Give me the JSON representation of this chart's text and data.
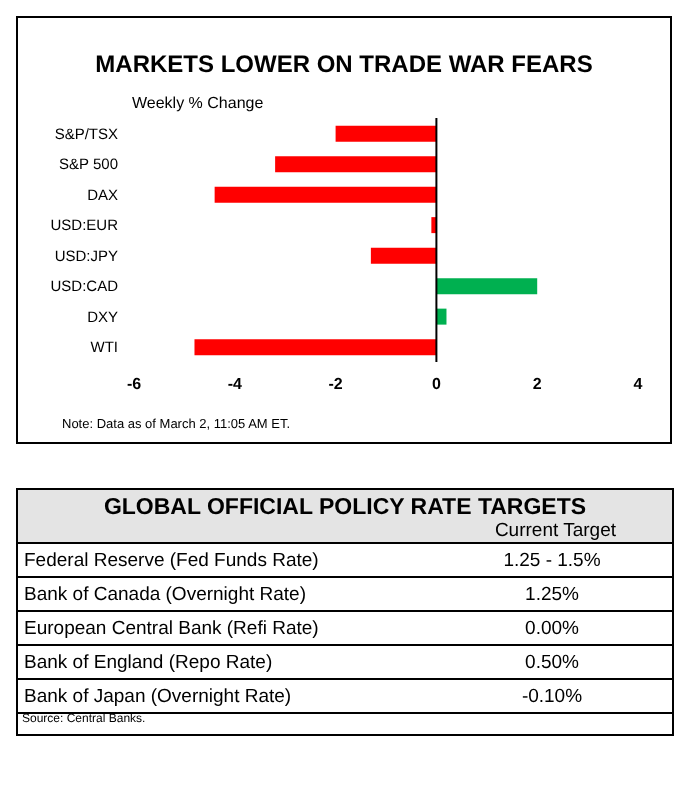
{
  "chart_data": [
    {
      "type": "bar",
      "orientation": "horizontal",
      "title": "MARKETS LOWER ON TRADE WAR FEARS",
      "subtitle": "Weekly % Change",
      "categories": [
        "S&P/TSX",
        "S&P 500",
        "DAX",
        "USD:EUR",
        "USD:JPY",
        "USD:CAD",
        "DXY",
        "WTI"
      ],
      "values": [
        -2.0,
        -3.2,
        -4.4,
        -0.1,
        -1.3,
        2.0,
        0.2,
        -4.8
      ],
      "colors": [
        "#ff0000",
        "#ff0000",
        "#ff0000",
        "#ff0000",
        "#ff0000",
        "#00b050",
        "#00b050",
        "#ff0000"
      ],
      "xlim": [
        -6,
        4
      ],
      "xticks": [
        -6,
        -4,
        -2,
        0,
        2,
        4
      ],
      "grid": false,
      "legend": false,
      "ref_lines": [
        {
          "axis": "x",
          "value": 0,
          "color": "#000000"
        }
      ],
      "annotations": [
        "Note: Data as of March 2, 11:05 AM ET."
      ]
    },
    {
      "type": "other",
      "title": "GLOBAL OFFICIAL POLICY RATE TARGETS",
      "subtitle": "Current Target",
      "categories": [
        "Federal Reserve (Fed Funds Rate)",
        "Bank of Canada (Overnight Rate)",
        "European Central Bank (Refi Rate)",
        "Bank of England (Repo Rate)",
        "Bank of Japan (Overnight Rate)"
      ],
      "value_labels": [
        "1.25 - 1.5%",
        "1.25%",
        "0.00%",
        "0.50%",
        "-0.10%"
      ],
      "annotations": [
        "Source: Central Banks."
      ]
    }
  ]
}
